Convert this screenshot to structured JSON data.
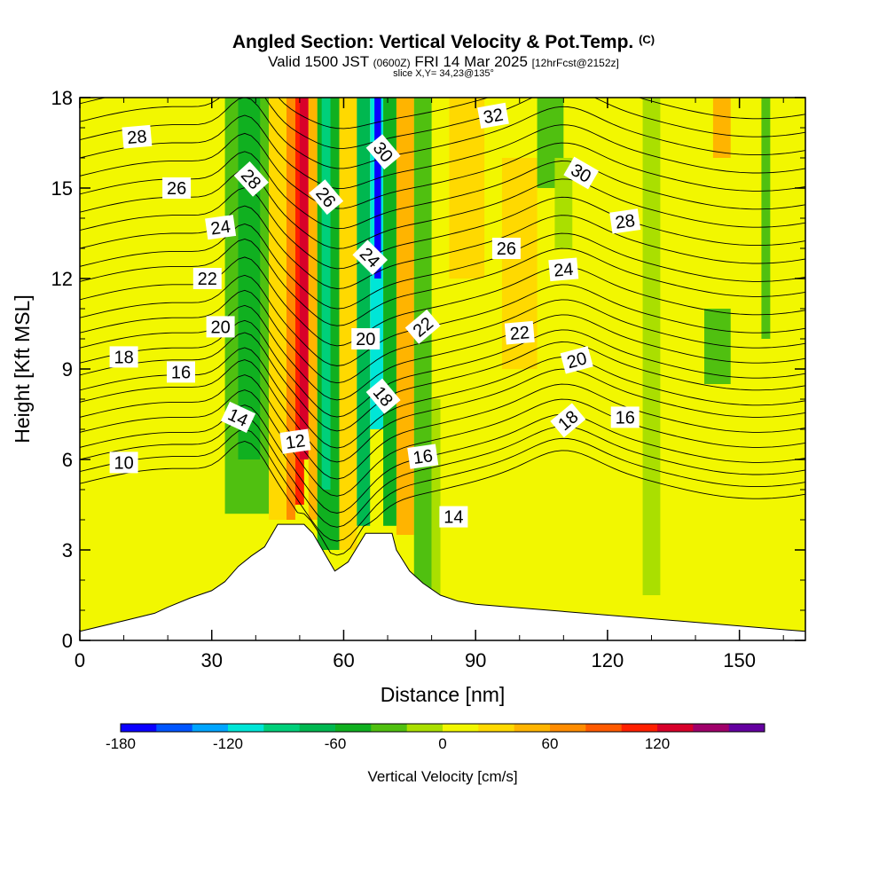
{
  "title": {
    "main": "Angled Section: Vertical Velocity & Pot.Temp.",
    "main_units": "(C)",
    "valid_prefix": "Valid 1500 JST",
    "valid_utc": "(0600Z)",
    "valid_date": "FRI 14 Mar 2025",
    "forecast": "[12hrFcst@2152z]",
    "slice": "slice X,Y= 34,23@135°"
  },
  "chart_data": {
    "type": "heatmap",
    "xlabel": "Distance [nm]",
    "ylabel": "Height [Kft MSL]",
    "xlim": [
      0,
      165
    ],
    "ylim": [
      0,
      18
    ],
    "x_ticks": [
      0,
      30,
      60,
      90,
      120,
      150
    ],
    "y_ticks": [
      0,
      3,
      6,
      9,
      12,
      15,
      18
    ],
    "x_minor_step": 10,
    "y_minor_step": 1,
    "terrain": [
      [
        0,
        0.3
      ],
      [
        10,
        0.65
      ],
      [
        17,
        0.9
      ],
      [
        20,
        1.1
      ],
      [
        25,
        1.4
      ],
      [
        30,
        1.65
      ],
      [
        33,
        1.95
      ],
      [
        36,
        2.45
      ],
      [
        39,
        2.8
      ],
      [
        42,
        3.1
      ],
      [
        45,
        3.85
      ],
      [
        51,
        3.85
      ],
      [
        53,
        3.55
      ],
      [
        56,
        2.8
      ],
      [
        58,
        2.3
      ],
      [
        61,
        2.6
      ],
      [
        65,
        3.55
      ],
      [
        71,
        3.55
      ],
      [
        72,
        3.0
      ],
      [
        75,
        2.3
      ],
      [
        78,
        1.9
      ],
      [
        82,
        1.5
      ],
      [
        86,
        1.3
      ],
      [
        90,
        1.2
      ]
    ],
    "vertical_velocity_bands": [
      {
        "x0": 33,
        "x1": 43,
        "y0": 4.2,
        "y1": 18,
        "value": -40
      },
      {
        "x0": 36,
        "x1": 41,
        "y0": 6.0,
        "y1": 18,
        "value": -60
      },
      {
        "x0": 43,
        "x1": 47,
        "y0": 4.0,
        "y1": 18,
        "value": 30
      },
      {
        "x0": 47,
        "x1": 49,
        "y0": 4.0,
        "y1": 18,
        "value": 70
      },
      {
        "x0": 49,
        "x1": 51,
        "y0": 4.5,
        "y1": 18,
        "value": 100
      },
      {
        "x0": 50,
        "x1": 52,
        "y0": 6.0,
        "y1": 18,
        "value": 130
      },
      {
        "x0": 52,
        "x1": 54,
        "y0": 4.0,
        "y1": 18,
        "value": 40
      },
      {
        "x0": 54,
        "x1": 59,
        "y0": 3.0,
        "y1": 18,
        "value": -60
      },
      {
        "x0": 55,
        "x1": 57,
        "y0": 5.0,
        "y1": 18,
        "value": -100
      },
      {
        "x0": 59,
        "x1": 63,
        "y0": 3.0,
        "y1": 18,
        "value": 30
      },
      {
        "x0": 63,
        "x1": 66,
        "y0": 3.8,
        "y1": 18,
        "value": -70
      },
      {
        "x0": 66,
        "x1": 69,
        "y0": 7.0,
        "y1": 18,
        "value": -120
      },
      {
        "x0": 67,
        "x1": 68.5,
        "y0": 12.0,
        "y1": 18,
        "value": -170
      },
      {
        "x0": 69,
        "x1": 72,
        "y0": 3.8,
        "y1": 18,
        "value": -50
      },
      {
        "x0": 72,
        "x1": 76,
        "y0": 3.5,
        "y1": 18,
        "value": 40
      },
      {
        "x0": 76,
        "x1": 80,
        "y0": 1.5,
        "y1": 18,
        "value": -40
      },
      {
        "x0": 80,
        "x1": 82,
        "y0": 1.5,
        "y1": 8.0,
        "value": -20
      },
      {
        "x0": 84,
        "x1": 92,
        "y0": 12.0,
        "y1": 18,
        "value": 30
      },
      {
        "x0": 96,
        "x1": 104,
        "y0": 9.0,
        "y1": 16,
        "value": 30
      },
      {
        "x0": 104,
        "x1": 110,
        "y0": 15.0,
        "y1": 18,
        "value": -40
      },
      {
        "x0": 108,
        "x1": 112,
        "y0": 13.0,
        "y1": 16,
        "value": -20
      },
      {
        "x0": 128,
        "x1": 132,
        "y0": 1.5,
        "y1": 18,
        "value": -20
      },
      {
        "x0": 142,
        "x1": 148,
        "y0": 8.5,
        "y1": 11,
        "value": -30
      },
      {
        "x0": 144,
        "x1": 148,
        "y0": 16.0,
        "y1": 18,
        "value": 40
      },
      {
        "x0": 155,
        "x1": 157,
        "y0": 10.0,
        "y1": 18,
        "value": -30
      }
    ],
    "theta_contours": {
      "levels": [
        10,
        11,
        12,
        13,
        14,
        15,
        16,
        17,
        18,
        19,
        20,
        21,
        22,
        23,
        24,
        25,
        26,
        27,
        28,
        29,
        30,
        31,
        32,
        33,
        34
      ],
      "base_height": [
        5.2,
        5.6,
        6.0,
        6.4,
        6.9,
        7.4,
        7.9,
        8.3,
        8.8,
        9.2,
        9.7,
        10.2,
        10.7,
        11.3,
        11.9,
        12.4,
        13.0,
        13.6,
        14.2,
        14.8,
        15.4,
        16.0,
        16.6,
        17.2,
        17.8
      ],
      "labels": [
        {
          "text": "28",
          "x": 13,
          "y": 16.7,
          "angle": -5
        },
        {
          "text": "26",
          "x": 22,
          "y": 15.0,
          "angle": 0
        },
        {
          "text": "24",
          "x": 32,
          "y": 13.7,
          "angle": -8
        },
        {
          "text": "22",
          "x": 29,
          "y": 12.0,
          "angle": 0
        },
        {
          "text": "20",
          "x": 32,
          "y": 10.4,
          "angle": 0
        },
        {
          "text": "18",
          "x": 10,
          "y": 9.4,
          "angle": 0
        },
        {
          "text": "16",
          "x": 23,
          "y": 8.9,
          "angle": 0
        },
        {
          "text": "14",
          "x": 36,
          "y": 7.4,
          "angle": 25
        },
        {
          "text": "12",
          "x": 49,
          "y": 6.6,
          "angle": -8
        },
        {
          "text": "10",
          "x": 10,
          "y": 5.9,
          "angle": 0
        },
        {
          "text": "28",
          "x": 39,
          "y": 15.3,
          "angle": 48
        },
        {
          "text": "26",
          "x": 56,
          "y": 14.7,
          "angle": 50
        },
        {
          "text": "30",
          "x": 69,
          "y": 16.2,
          "angle": 50
        },
        {
          "text": "24",
          "x": 66,
          "y": 12.7,
          "angle": 45
        },
        {
          "text": "20",
          "x": 65,
          "y": 10.0,
          "angle": 0
        },
        {
          "text": "22",
          "x": 78,
          "y": 10.4,
          "angle": -40
        },
        {
          "text": "18",
          "x": 69,
          "y": 8.1,
          "angle": 50
        },
        {
          "text": "16",
          "x": 78,
          "y": 6.1,
          "angle": -8
        },
        {
          "text": "14",
          "x": 85,
          "y": 4.1,
          "angle": 0
        },
        {
          "text": "32",
          "x": 94,
          "y": 17.4,
          "angle": -10
        },
        {
          "text": "30",
          "x": 114,
          "y": 15.5,
          "angle": 30
        },
        {
          "text": "28",
          "x": 124,
          "y": 13.9,
          "angle": -8
        },
        {
          "text": "26",
          "x": 97,
          "y": 13.0,
          "angle": 0
        },
        {
          "text": "24",
          "x": 110,
          "y": 12.3,
          "angle": -5
        },
        {
          "text": "22",
          "x": 100,
          "y": 10.2,
          "angle": -5
        },
        {
          "text": "20",
          "x": 113,
          "y": 9.3,
          "angle": -15
        },
        {
          "text": "18",
          "x": 111,
          "y": 7.3,
          "angle": -40
        },
        {
          "text": "16",
          "x": 124,
          "y": 7.4,
          "angle": 0
        }
      ]
    },
    "colorbar": {
      "label": "Vertical Velocity [cm/s]",
      "ticks": [
        -180,
        -120,
        -60,
        0,
        60,
        120
      ],
      "bins": [
        -180,
        -160,
        -140,
        -120,
        -100,
        -80,
        -60,
        -40,
        -20,
        0,
        20,
        40,
        60,
        80,
        100,
        120,
        140,
        160,
        180
      ],
      "colors": [
        "#0b00ff",
        "#0055ff",
        "#00a5ff",
        "#00e6d7",
        "#00d07a",
        "#00b850",
        "#10b020",
        "#50c010",
        "#aadf00",
        "#f2f700",
        "#ffd900",
        "#ffb400",
        "#ff8c00",
        "#ff5a00",
        "#ff2000",
        "#d8002a",
        "#a0006a",
        "#6400a0"
      ]
    }
  }
}
